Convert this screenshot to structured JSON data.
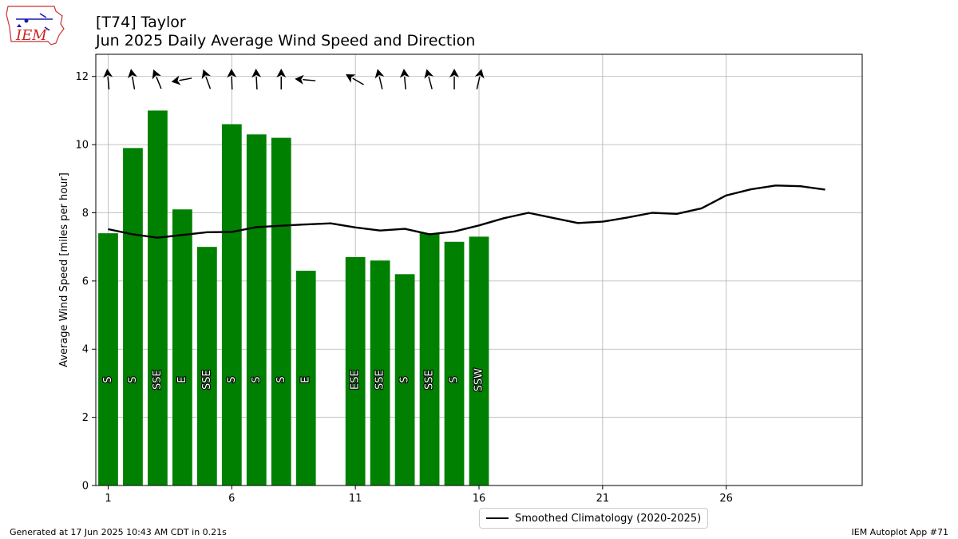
{
  "logo": {
    "text": "IEM"
  },
  "header": {
    "title_line1": "[T74] Taylor",
    "title_line2": "Jun 2025 Daily Average Wind Speed and Direction"
  },
  "chart_data": {
    "type": "bar",
    "ylabel": "Average Wind Speed [miles per hour]",
    "xlabel": "",
    "xlim": [
      0.5,
      31.5
    ],
    "ylim": [
      0,
      12.65
    ],
    "x_ticks": [
      1,
      6,
      11,
      16,
      21,
      26
    ],
    "y_ticks": [
      0,
      2,
      4,
      6,
      8,
      10,
      12
    ],
    "grid": true,
    "bar_color": "#008000",
    "bars": [
      {
        "day": 1,
        "value": 7.4,
        "dir_label": "S",
        "dir_deg": 175
      },
      {
        "day": 2,
        "value": 9.9,
        "dir_label": "S",
        "dir_deg": 170
      },
      {
        "day": 3,
        "value": 11.0,
        "dir_label": "SSE",
        "dir_deg": 158
      },
      {
        "day": 4,
        "value": 8.1,
        "dir_label": "E",
        "dir_deg": 80
      },
      {
        "day": 5,
        "value": 7.0,
        "dir_label": "SSE",
        "dir_deg": 160
      },
      {
        "day": 6,
        "value": 10.6,
        "dir_label": "S",
        "dir_deg": 178
      },
      {
        "day": 7,
        "value": 10.3,
        "dir_label": "S",
        "dir_deg": 177
      },
      {
        "day": 8,
        "value": 10.2,
        "dir_label": "S",
        "dir_deg": 180
      },
      {
        "day": 9,
        "value": 6.3,
        "dir_label": "E",
        "dir_deg": 95
      },
      {
        "day": 11,
        "value": 6.7,
        "dir_label": "ESE",
        "dir_deg": 120
      },
      {
        "day": 12,
        "value": 6.6,
        "dir_label": "SSE",
        "dir_deg": 167
      },
      {
        "day": 13,
        "value": 6.2,
        "dir_label": "S",
        "dir_deg": 175
      },
      {
        "day": 14,
        "value": 7.4,
        "dir_label": "SSE",
        "dir_deg": 165
      },
      {
        "day": 15,
        "value": 7.15,
        "dir_label": "S",
        "dir_deg": 180
      },
      {
        "day": 16,
        "value": 7.3,
        "dir_label": "SSW",
        "dir_deg": 193
      }
    ],
    "series": [
      {
        "name": "Smoothed Climatology (2020-2025)",
        "color": "#000000",
        "x": [
          1,
          2,
          3,
          4,
          5,
          6,
          7,
          8,
          9,
          10,
          11,
          12,
          13,
          14,
          15,
          16,
          17,
          18,
          19,
          20,
          21,
          22,
          23,
          24,
          25,
          26,
          27,
          28,
          29,
          30
        ],
        "y": [
          7.52,
          7.37,
          7.27,
          7.35,
          7.43,
          7.44,
          7.58,
          7.62,
          7.66,
          7.69,
          7.57,
          7.48,
          7.53,
          7.37,
          7.45,
          7.63,
          7.84,
          8.0,
          7.85,
          7.7,
          7.74,
          7.86,
          8.0,
          7.97,
          8.13,
          8.51,
          8.69,
          8.8,
          8.78,
          8.68
        ]
      }
    ]
  },
  "footer": {
    "generated": "Generated at 17 Jun 2025 10:43 AM CDT in 0.21s",
    "app": "IEM Autoplot App #71"
  }
}
